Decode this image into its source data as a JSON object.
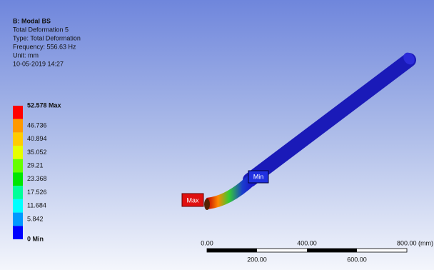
{
  "header": {
    "title": "B: Modal BS",
    "lines": [
      "Total Deformation 5",
      "Type: Total Deformation",
      "Frequency: 556.63 Hz",
      "Unit: mm",
      "10-05-2019 14:27"
    ]
  },
  "legend": {
    "entries": [
      {
        "label": "52.578 Max",
        "color": "#ff0000"
      },
      {
        "label": "46.736",
        "color": "#ff9900"
      },
      {
        "label": "40.894",
        "color": "#ffcc00"
      },
      {
        "label": "35.052",
        "color": "#e6ff00"
      },
      {
        "label": "29.21",
        "color": "#66ff00"
      },
      {
        "label": "23.368",
        "color": "#00e600"
      },
      {
        "label": "17.526",
        "color": "#00ff99"
      },
      {
        "label": "11.684",
        "color": "#00ffff"
      },
      {
        "label": "5.842",
        "color": "#0099ff"
      },
      {
        "label": "0 Min",
        "color": "#0000ff"
      }
    ]
  },
  "scale": {
    "top_labels": [
      "0.00",
      "400.00",
      "800.00 (mm)"
    ],
    "bottom_labels": [
      "200.00",
      "600.00"
    ]
  },
  "tags": {
    "max": "Max",
    "min": "Min"
  }
}
